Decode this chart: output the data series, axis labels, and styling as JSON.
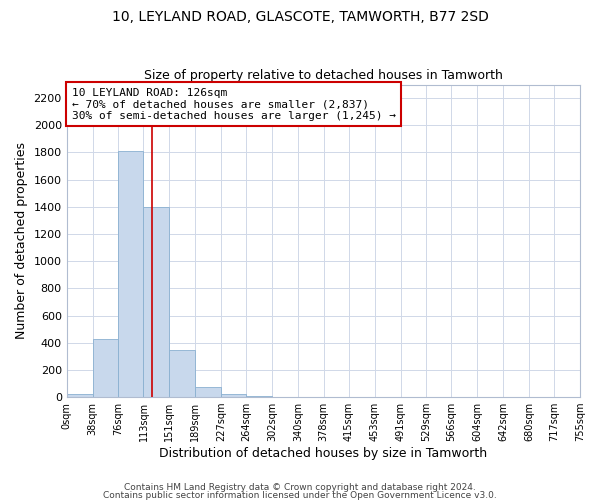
{
  "title": "10, LEYLAND ROAD, GLASCOTE, TAMWORTH, B77 2SD",
  "subtitle": "Size of property relative to detached houses in Tamworth",
  "xlabel": "Distribution of detached houses by size in Tamworth",
  "ylabel": "Number of detached properties",
  "bin_labels": [
    "0sqm",
    "38sqm",
    "76sqm",
    "113sqm",
    "151sqm",
    "189sqm",
    "227sqm",
    "264sqm",
    "302sqm",
    "340sqm",
    "378sqm",
    "415sqm",
    "453sqm",
    "491sqm",
    "529sqm",
    "566sqm",
    "604sqm",
    "642sqm",
    "680sqm",
    "717sqm",
    "755sqm"
  ],
  "bar_values": [
    20,
    430,
    1810,
    1400,
    350,
    75,
    20,
    5,
    0,
    0,
    0,
    0,
    0,
    0,
    0,
    0,
    0,
    0,
    0,
    0
  ],
  "bar_color": "#c8d8ec",
  "bar_edge_color": "#8ab0d0",
  "ylim": [
    0,
    2300
  ],
  "yticks": [
    0,
    200,
    400,
    600,
    800,
    1000,
    1200,
    1400,
    1600,
    1800,
    2000,
    2200
  ],
  "vline_x": 126,
  "vline_color": "#cc0000",
  "bin_edges": [
    0,
    38,
    76,
    113,
    151,
    189,
    227,
    264,
    302,
    340,
    378,
    415,
    453,
    491,
    529,
    566,
    604,
    642,
    680,
    717,
    755
  ],
  "annotation_title": "10 LEYLAND ROAD: 126sqm",
  "annotation_line1": "← 70% of detached houses are smaller (2,837)",
  "annotation_line2": "30% of semi-detached houses are larger (1,245) →",
  "annotation_box_color": "#ffffff",
  "annotation_box_edge": "#cc0000",
  "footer1": "Contains HM Land Registry data © Crown copyright and database right 2024.",
  "footer2": "Contains public sector information licensed under the Open Government Licence v3.0.",
  "bg_color": "#ffffff",
  "grid_color": "#d0d8e8"
}
